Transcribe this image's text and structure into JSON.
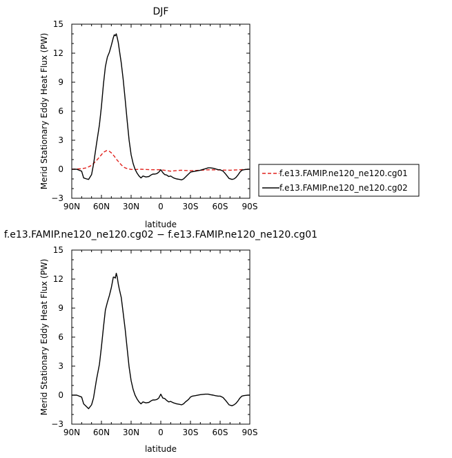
{
  "chart_data": [
    {
      "type": "line",
      "title": "DJF",
      "xlabel": "latitude",
      "ylabel": "Merid Stationary Eddy Heat Flux (PW)",
      "xlim": [
        90,
        -90
      ],
      "ylim": [
        -3,
        15
      ],
      "x_ticks": [
        90,
        60,
        30,
        0,
        -30,
        -60,
        -90
      ],
      "x_tick_labels": [
        "90N",
        "60N",
        "30N",
        "0",
        "30S",
        "60S",
        "90S"
      ],
      "y_ticks": [
        -3,
        0,
        3,
        6,
        9,
        12,
        15
      ],
      "y_tick_labels": [
        "−3",
        "0",
        "3",
        "6",
        "9",
        "12",
        "15"
      ],
      "legend": "right",
      "series": [
        {
          "name": "f.e13.FAMIP.ne120_ne120.cg01",
          "color": "#e0201b",
          "dash": "dashed",
          "x": [
            90,
            80,
            75,
            70,
            65,
            60,
            58,
            55,
            52,
            50,
            47,
            45,
            42,
            40,
            37,
            35,
            32,
            30,
            25,
            20,
            10,
            0,
            -10,
            -20,
            -30,
            -40,
            -50,
            -60,
            -70,
            -80,
            -90
          ],
          "y": [
            0.0,
            0.05,
            0.15,
            0.4,
            0.9,
            1.5,
            1.75,
            1.92,
            1.85,
            1.7,
            1.35,
            1.05,
            0.7,
            0.45,
            0.2,
            0.1,
            0.02,
            -0.02,
            -0.02,
            0.0,
            -0.05,
            -0.05,
            -0.2,
            -0.1,
            -0.15,
            -0.1,
            -0.05,
            -0.08,
            -0.1,
            -0.05,
            0.0
          ]
        },
        {
          "name": "f.e13.FAMIP.ne120_ne120.cg02",
          "color": "#000000",
          "dash": "solid",
          "x": [
            90,
            85,
            80,
            78,
            75,
            73,
            70,
            68,
            65,
            62,
            60,
            58,
            56,
            54,
            52,
            50,
            48,
            47,
            46,
            45,
            44,
            43,
            42,
            40,
            38,
            36,
            34,
            32,
            30,
            28,
            26,
            24,
            22,
            20,
            18,
            15,
            12,
            10,
            8,
            6,
            4,
            2,
            0,
            -2,
            -4,
            -6,
            -8,
            -10,
            -13,
            -16,
            -19,
            -21,
            -23,
            -25,
            -28,
            -30,
            -32,
            -35,
            -40,
            -45,
            -48,
            -50,
            -53,
            -55,
            -58,
            -60,
            -63,
            -66,
            -69,
            -72,
            -74,
            -76,
            -78,
            -80,
            -82,
            -84,
            -86,
            -88,
            -90
          ],
          "y": [
            0.0,
            0.0,
            -0.2,
            -0.9,
            -1.0,
            -1.05,
            -0.55,
            0.5,
            2.6,
            4.6,
            6.5,
            8.8,
            10.6,
            11.6,
            12.1,
            12.8,
            13.6,
            13.9,
            13.8,
            14.0,
            13.6,
            13.1,
            12.4,
            11.0,
            9.3,
            7.2,
            5.0,
            3.0,
            1.5,
            0.6,
            0.0,
            -0.4,
            -0.7,
            -0.9,
            -0.7,
            -0.8,
            -0.75,
            -0.6,
            -0.5,
            -0.5,
            -0.45,
            -0.3,
            -0.05,
            -0.35,
            -0.55,
            -0.6,
            -0.75,
            -0.7,
            -0.9,
            -1.0,
            -1.05,
            -1.1,
            -1.0,
            -0.8,
            -0.5,
            -0.3,
            -0.25,
            -0.2,
            -0.1,
            0.05,
            0.15,
            0.15,
            0.1,
            0.05,
            -0.05,
            -0.05,
            -0.2,
            -0.55,
            -0.95,
            -1.05,
            -1.0,
            -0.85,
            -0.6,
            -0.3,
            -0.1,
            -0.05,
            -0.02,
            0.0,
            0.0
          ]
        }
      ]
    },
    {
      "type": "line",
      "title": "f.e13.FAMIP.ne120_ne120.cg02 − f.e13.FAMIP.ne120_ne120.cg01",
      "xlabel": "latitude",
      "ylabel": "Merid Stationary Eddy Heat Flux (PW)",
      "xlim": [
        90,
        -90
      ],
      "ylim": [
        -3,
        15
      ],
      "x_ticks": [
        90,
        60,
        30,
        0,
        -30,
        -60,
        -90
      ],
      "x_tick_labels": [
        "90N",
        "60N",
        "30N",
        "0",
        "30S",
        "60S",
        "90S"
      ],
      "y_ticks": [
        -3,
        0,
        3,
        6,
        9,
        12,
        15
      ],
      "y_tick_labels": [
        "−3",
        "0",
        "3",
        "6",
        "9",
        "12",
        "15"
      ],
      "series": [
        {
          "color": "#000000",
          "dash": "solid",
          "x": [
            90,
            85,
            80,
            78,
            75,
            73,
            70,
            68,
            65,
            62,
            60,
            58,
            56,
            54,
            52,
            50,
            48,
            47,
            46,
            45,
            44,
            43,
            42,
            40,
            38,
            36,
            34,
            32,
            30,
            28,
            26,
            24,
            22,
            20,
            18,
            15,
            12,
            10,
            8,
            6,
            4,
            2,
            0,
            -2,
            -4,
            -6,
            -8,
            -10,
            -13,
            -16,
            -19,
            -21,
            -23,
            -25,
            -28,
            -30,
            -32,
            -35,
            -40,
            -45,
            -48,
            -50,
            -53,
            -55,
            -58,
            -60,
            -63,
            -66,
            -69,
            -72,
            -74,
            -76,
            -78,
            -80,
            -82,
            -84,
            -86,
            -88,
            -90
          ],
          "y": [
            0.0,
            0.0,
            -0.2,
            -0.9,
            -1.2,
            -1.4,
            -1.0,
            -0.3,
            1.6,
            3.2,
            5.0,
            7.0,
            8.8,
            9.6,
            10.3,
            11.1,
            12.2,
            12.2,
            12.1,
            12.6,
            12.2,
            11.5,
            11.0,
            10.1,
            8.5,
            6.8,
            4.8,
            2.9,
            1.5,
            0.6,
            0.0,
            -0.4,
            -0.7,
            -0.9,
            -0.7,
            -0.8,
            -0.75,
            -0.6,
            -0.5,
            -0.5,
            -0.45,
            -0.3,
            0.1,
            -0.3,
            -0.35,
            -0.55,
            -0.7,
            -0.65,
            -0.8,
            -0.9,
            -0.95,
            -1.0,
            -0.9,
            -0.7,
            -0.45,
            -0.2,
            -0.1,
            -0.05,
            0.05,
            0.1,
            0.1,
            0.05,
            0.0,
            -0.05,
            -0.1,
            -0.1,
            -0.25,
            -0.6,
            -1.0,
            -1.1,
            -1.0,
            -0.85,
            -0.6,
            -0.3,
            -0.1,
            -0.05,
            -0.02,
            0.0,
            0.0
          ]
        }
      ]
    }
  ]
}
